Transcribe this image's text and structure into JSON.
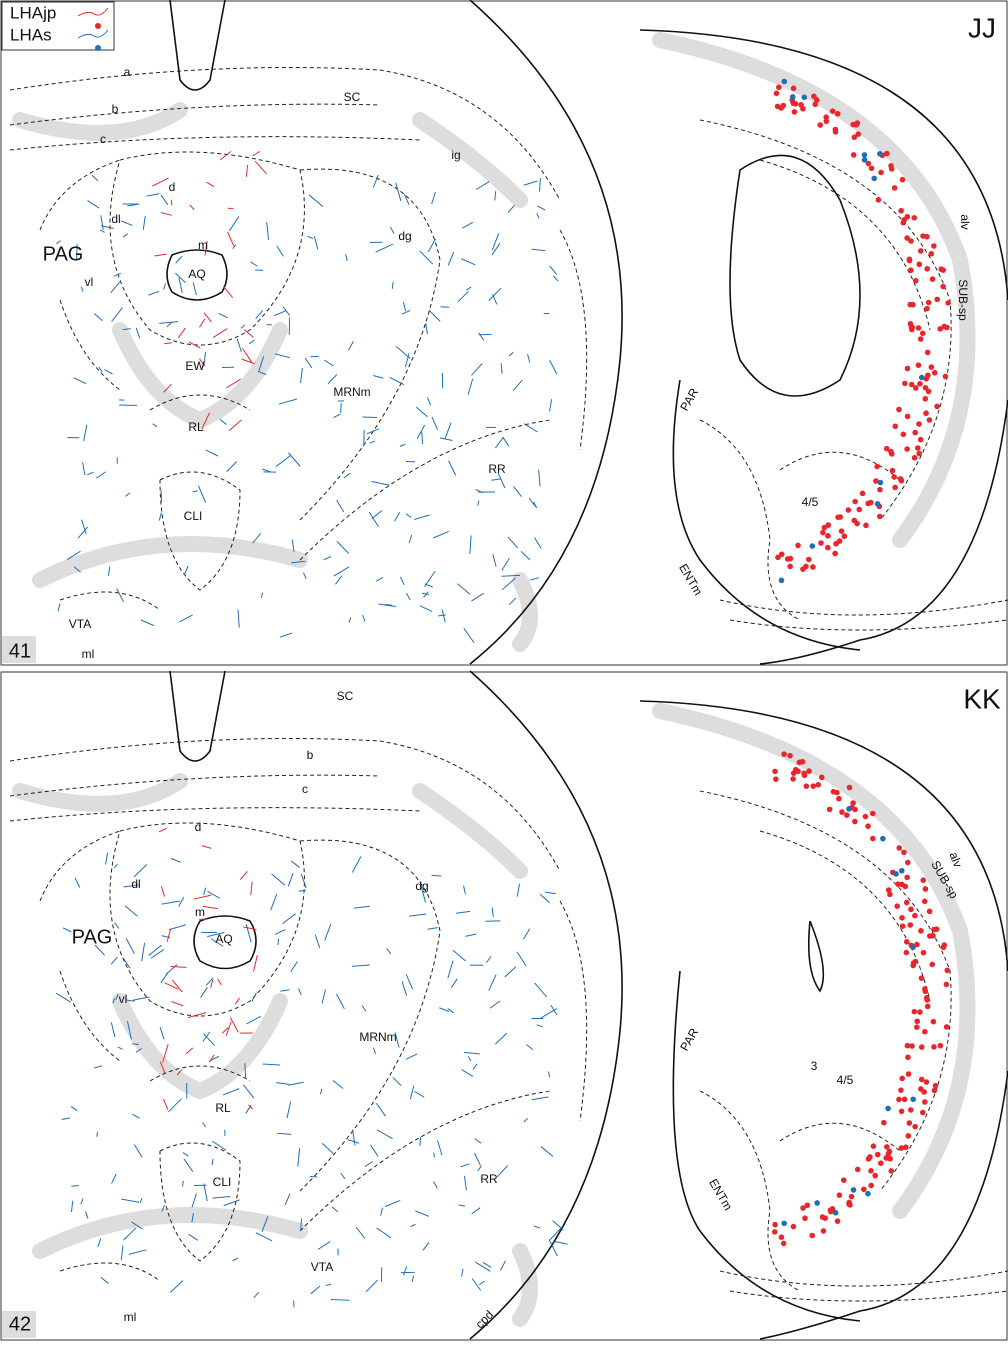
{
  "legend": [
    {
      "label": "LHAjp",
      "color": "#e8262b"
    },
    {
      "label": "LHAs",
      "color": "#1e6fb8"
    }
  ],
  "panels": [
    {
      "section": "41",
      "letter": "JJ",
      "labels": [
        "a",
        "b",
        "c",
        "SC",
        "ig",
        "d",
        "dl",
        "dg",
        "m",
        "PAG",
        "AQ",
        "vl",
        "EW",
        "MRNm",
        "RL",
        "RR",
        "CLI",
        "VTA",
        "ml",
        "alv",
        "SUB-sp",
        "PAR",
        "4/5",
        "ENTm"
      ]
    },
    {
      "section": "42",
      "letter": "KK",
      "labels": [
        "SC",
        "b",
        "c",
        "d",
        "dl",
        "dg",
        "m",
        "PAG",
        "AQ",
        "vl",
        "MRNm",
        "RL",
        "CLI",
        "RR",
        "VTA",
        "ml",
        "cpd",
        "alv",
        "SUB-sp",
        "PAR",
        "3",
        "4/5",
        "ENTm"
      ]
    }
  ]
}
